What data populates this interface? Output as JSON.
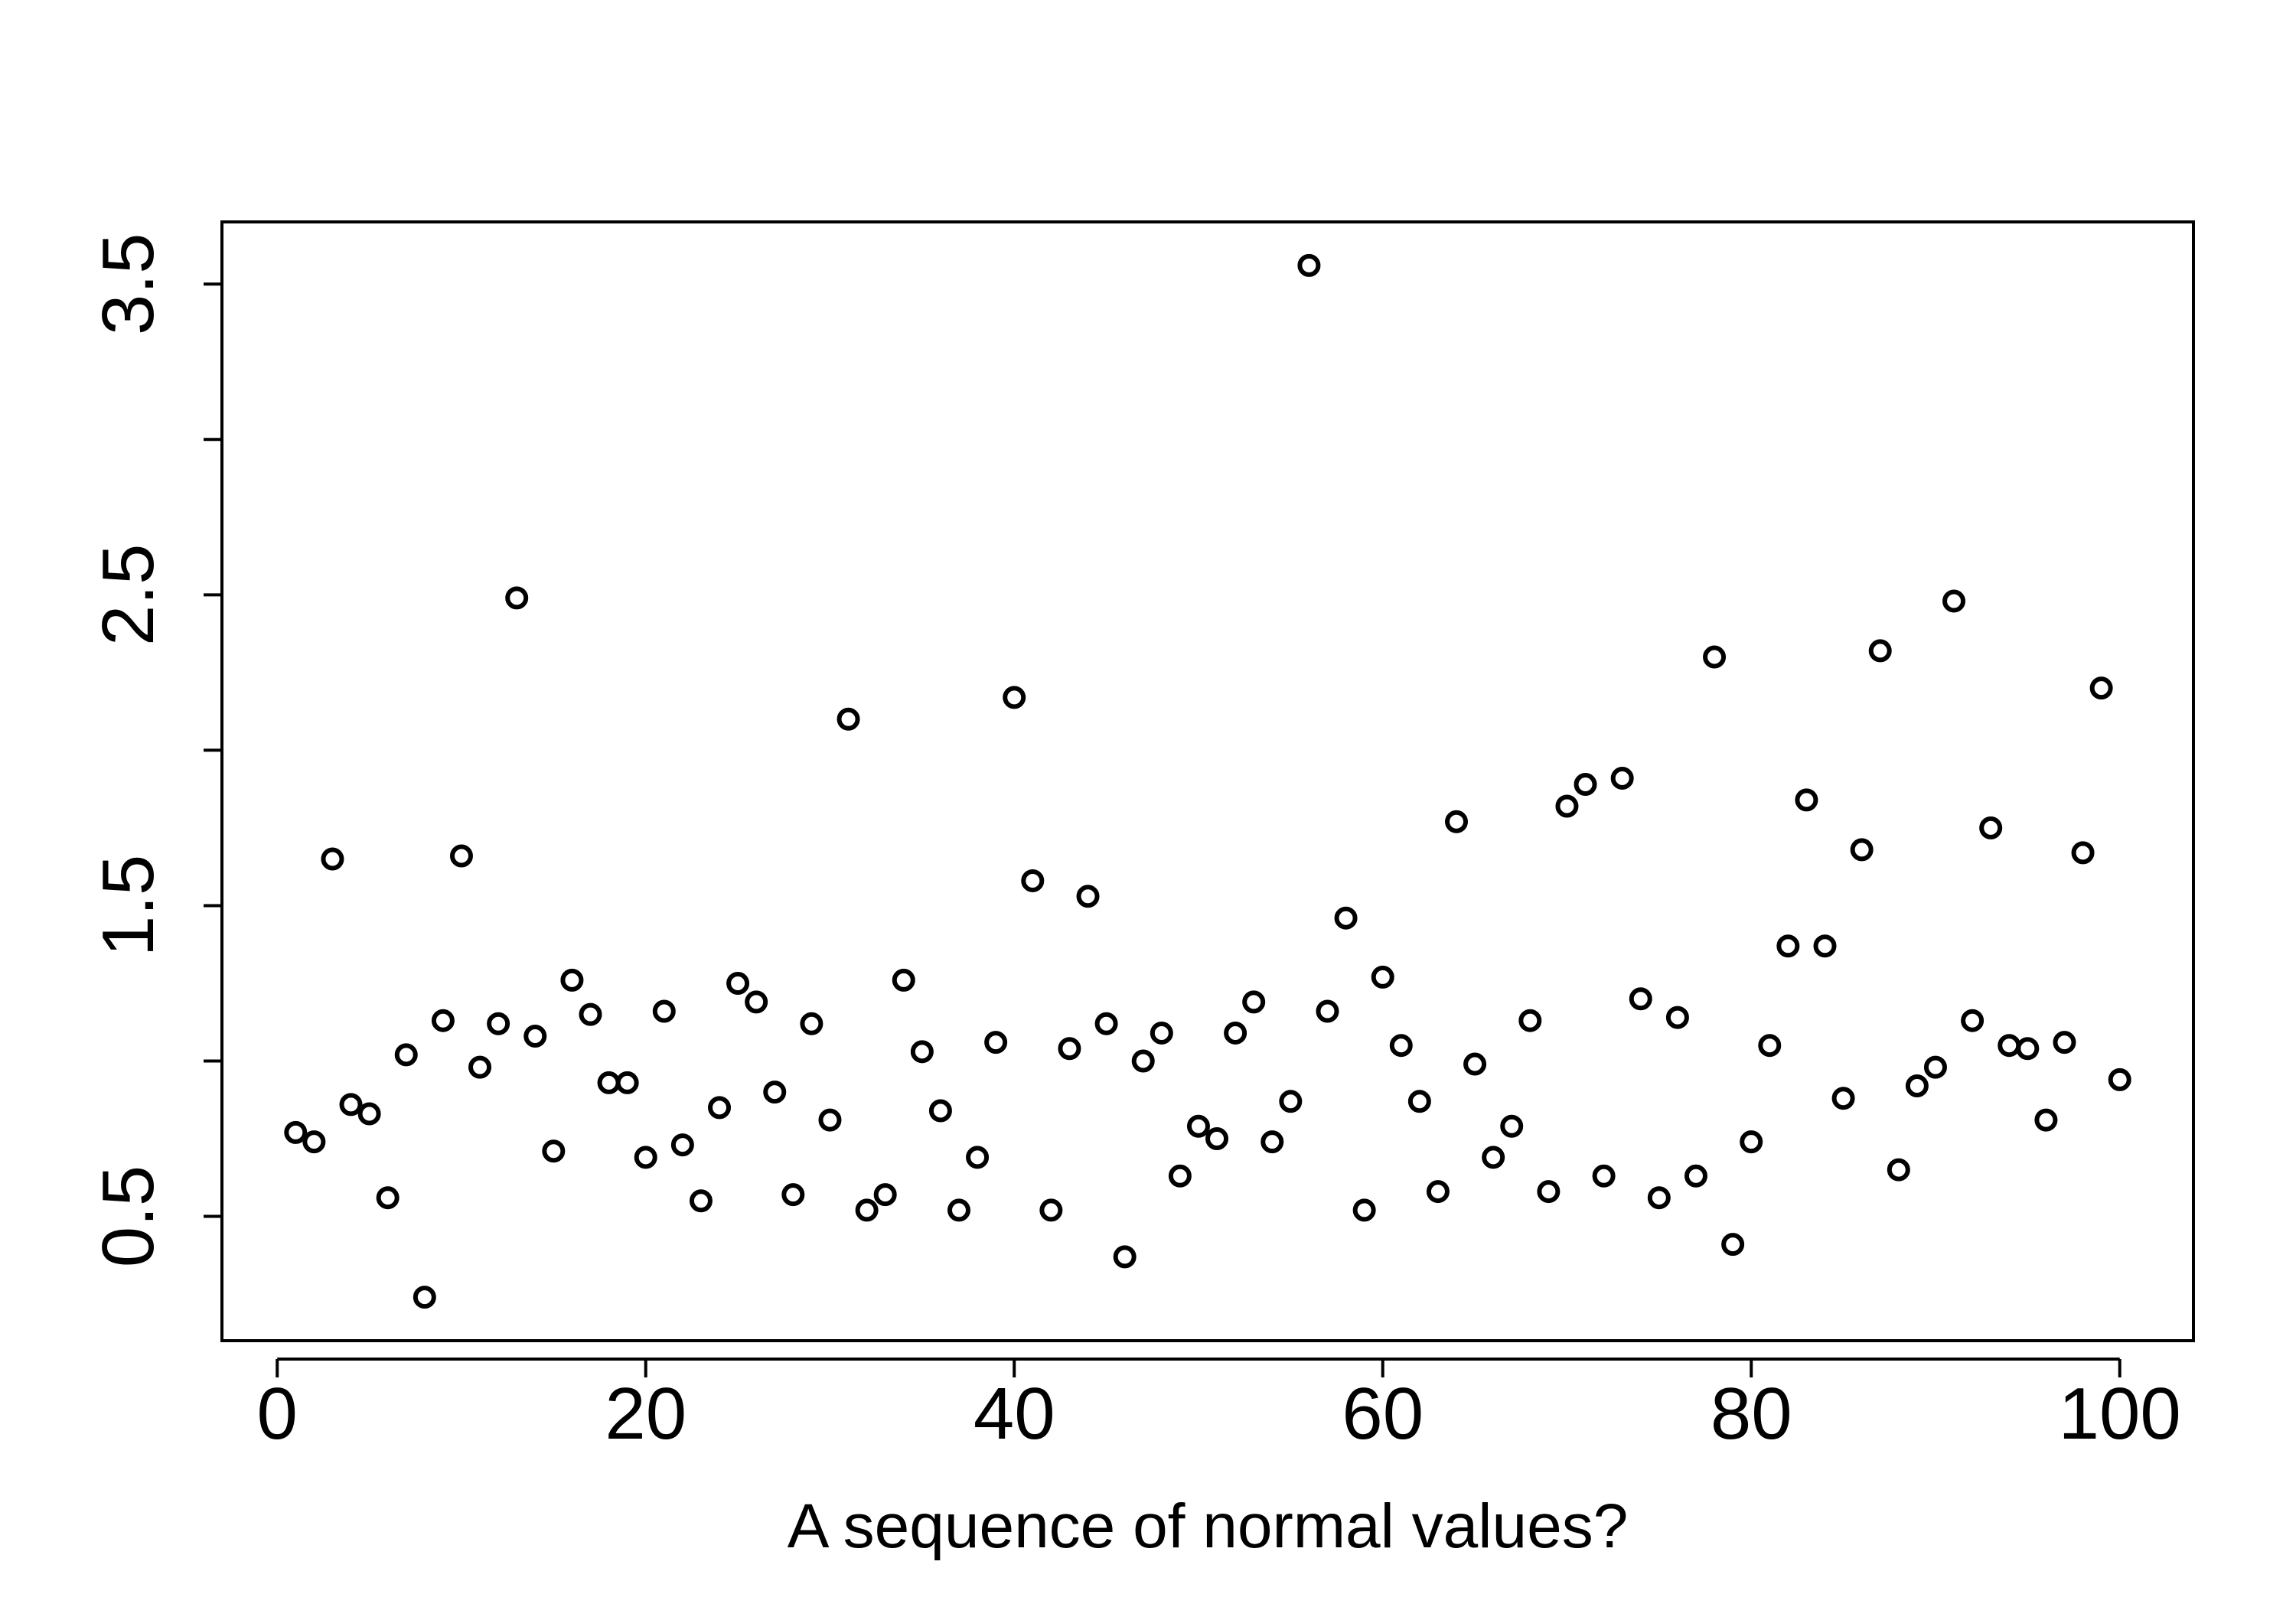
{
  "chart_data": {
    "type": "scatter",
    "title": "",
    "xlabel": "A sequence of normal values?",
    "ylabel": "",
    "xlim": [
      -3,
      104
    ],
    "ylim": [
      0.1,
      3.7
    ],
    "x_ticks": [
      0,
      20,
      40,
      60,
      80,
      100
    ],
    "x_tick_labels": [
      "0",
      "20",
      "40",
      "60",
      "80",
      "100"
    ],
    "y_ticks": [
      0.5,
      1.0,
      1.5,
      2.0,
      2.5,
      3.0,
      3.5
    ],
    "y_tick_labels": [
      "0.5",
      "",
      "1.5",
      "",
      "2.5",
      "",
      "3.5"
    ],
    "grid": false,
    "legend": "none",
    "colors": {
      "points": "#000000",
      "axes": "#000000",
      "background": "#ffffff"
    },
    "series": [
      {
        "x": [
          1,
          2,
          3,
          4,
          5,
          6,
          7,
          8,
          9,
          10,
          11,
          12,
          13,
          14,
          15,
          16,
          17,
          18,
          19,
          20,
          21,
          22,
          23,
          24,
          25,
          26,
          27,
          28,
          29,
          30,
          31,
          32,
          33,
          34,
          35,
          36,
          37,
          38,
          39,
          40,
          41,
          42,
          43,
          44,
          45,
          46,
          47,
          48,
          49,
          50,
          51,
          52,
          53,
          54,
          55,
          56,
          57,
          58,
          59,
          60,
          61,
          62,
          63,
          64,
          65,
          66,
          67,
          68,
          69,
          70,
          71,
          72,
          73,
          74,
          75,
          76,
          77,
          78,
          79,
          80,
          81,
          82,
          83,
          84,
          85,
          86,
          87,
          88,
          89,
          90,
          91,
          92,
          93,
          94,
          95,
          96,
          97,
          98,
          99,
          100
        ],
        "y": [
          0.77,
          0.74,
          1.65,
          0.86,
          0.83,
          0.56,
          1.02,
          0.24,
          1.13,
          1.66,
          0.98,
          1.12,
          2.49,
          1.08,
          0.71,
          1.26,
          1.15,
          0.93,
          0.93,
          0.69,
          1.16,
          0.73,
          0.55,
          0.85,
          1.25,
          1.19,
          0.9,
          0.57,
          1.12,
          0.81,
          2.1,
          0.52,
          0.57,
          1.26,
          1.03,
          0.84,
          0.52,
          0.69,
          1.06,
          2.17,
          1.58,
          0.52,
          1.04,
          1.53,
          1.12,
          0.37,
          1.0,
          1.09,
          0.63,
          0.79,
          0.75,
          1.09,
          1.19,
          0.74,
          0.87,
          3.56,
          1.16,
          1.46,
          0.52,
          1.27,
          1.05,
          0.87,
          0.58,
          1.77,
          0.99,
          0.69,
          0.79,
          1.13,
          0.58,
          1.82,
          1.89,
          0.63,
          1.91,
          1.2,
          0.56,
          1.14,
          0.63,
          2.3,
          0.41,
          0.74,
          1.05,
          1.37,
          1.84,
          1.37,
          0.88,
          1.68,
          2.32,
          0.65,
          0.92,
          0.98,
          2.48,
          1.13,
          1.75,
          1.05,
          1.04,
          0.81,
          1.06,
          1.67,
          2.2,
          0.94
        ]
      }
    ]
  }
}
